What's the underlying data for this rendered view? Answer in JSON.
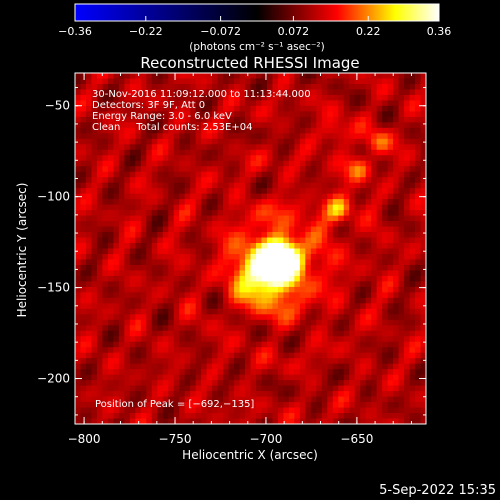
{
  "chart_data": {
    "type": "heatmap",
    "title": "Reconstructed RHESSI Image",
    "xlabel": "Heliocentric X (arcsec)",
    "ylabel": "Heliocentric Y (arcsec)",
    "xlim": [
      -805,
      -612
    ],
    "ylim": [
      -225,
      -32
    ],
    "xticks": [
      {
        "value": -800,
        "label": "−800"
      },
      {
        "value": -750,
        "label": "−750"
      },
      {
        "value": -700,
        "label": "−700"
      },
      {
        "value": -650,
        "label": "−650"
      }
    ],
    "yticks": [
      {
        "value": -50,
        "label": "−50"
      },
      {
        "value": -100,
        "label": "−100"
      },
      {
        "value": -150,
        "label": "−150"
      },
      {
        "value": -200,
        "label": "−200"
      }
    ],
    "colorbar": {
      "min": -0.36,
      "max": 0.36,
      "ticks": [
        {
          "value": -0.36,
          "label": "−0.36"
        },
        {
          "value": -0.22,
          "label": "−0.22"
        },
        {
          "value": -0.072,
          "label": "−0.072"
        },
        {
          "value": 0.072,
          "label": "0.072"
        },
        {
          "value": 0.22,
          "label": "0.22"
        },
        {
          "value": 0.36,
          "label": "0.36"
        }
      ],
      "label": "(photons cm⁻² s⁻¹ asec⁻²)",
      "colors": [
        "#0000ff",
        "#000000",
        "#ff0000",
        "#ffff00",
        "#ffffff"
      ]
    },
    "peak": [
      -692,
      -135
    ],
    "sources": [
      {
        "x": -692,
        "y": -135,
        "intensity": 0.36
      },
      {
        "x": -700,
        "y": -142,
        "intensity": 0.22
      },
      {
        "x": -660,
        "y": -107,
        "intensity": 0.14
      },
      {
        "x": -649,
        "y": -85,
        "intensity": 0.1
      },
      {
        "x": -638,
        "y": -70,
        "intensity": 0.09
      },
      {
        "x": -662,
        "y": -65,
        "intensity": 0.08
      }
    ],
    "annotations": [
      "30-Nov-2016 11:09:12.000 to 11:13:44.000",
      "Detectors: 3F 9F, Att 0",
      "Energy Range: 3.0 - 6.0 keV",
      "Clean     Total counts: 2.53E+04"
    ],
    "peak_label": "Position of Peak = [−692,−135]"
  },
  "footer": {
    "date": "5-Sep-2022 15:35"
  }
}
